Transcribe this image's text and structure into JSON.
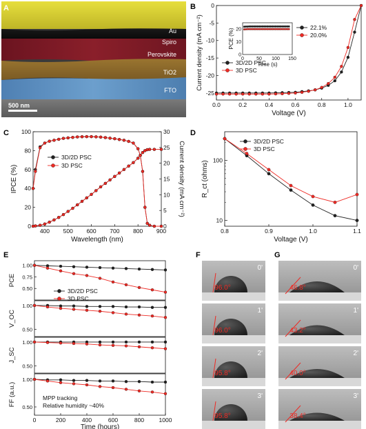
{
  "panel_labels": {
    "A": "A",
    "B": "B",
    "C": "C",
    "D": "D",
    "E": "E",
    "F": "F",
    "G": "G"
  },
  "colors": {
    "black_series": "#222222",
    "red_series": "#ee2a24",
    "au": "#d8cf2f",
    "spiro": "#111111",
    "perovskite": "#7e1a24",
    "tio2": "#8e6a2c",
    "fto": "#5d8fbf",
    "glass": "#6a6a6a"
  },
  "panel_a": {
    "layers": [
      "Au",
      "Spiro",
      "Perovskite",
      "TiO2",
      "FTO"
    ],
    "scale_bar": "500 nm"
  },
  "panel_f": {
    "times": [
      "0'",
      "1'",
      "2'",
      "3'"
    ],
    "angles": [
      "96.0°",
      "96.0°",
      "95.8°",
      "95.8°"
    ]
  },
  "panel_g": {
    "times": [
      "0'",
      "1'",
      "2'",
      "3'"
    ],
    "angles": [
      "46.8°",
      "43.2°",
      "40.0°",
      "38.4°"
    ]
  },
  "chart_data": [
    {
      "panel": "B",
      "type": "line",
      "xlabel": "Voltage (V)",
      "ylabel": "Current density (mA cm⁻²)",
      "xlim": [
        0.0,
        1.1
      ],
      "ylim": [
        -27,
        0
      ],
      "xticks": [
        0.0,
        0.2,
        0.4,
        0.6,
        0.8,
        1.0
      ],
      "yticks": [
        -25,
        -20,
        -15,
        -10,
        -5,
        0
      ],
      "x": [
        0.0,
        0.05,
        0.1,
        0.15,
        0.2,
        0.25,
        0.3,
        0.35,
        0.4,
        0.45,
        0.5,
        0.55,
        0.6,
        0.65,
        0.7,
        0.75,
        0.8,
        0.85,
        0.9,
        0.95,
        1.0,
        1.05,
        1.1
      ],
      "series": [
        {
          "name": "3D/2D PSC",
          "color": "#222222",
          "values": [
            -25.0,
            -25.0,
            -25.0,
            -25.0,
            -25.0,
            -25.0,
            -25.0,
            -25.0,
            -25.0,
            -24.95,
            -24.9,
            -24.85,
            -24.8,
            -24.6,
            -24.4,
            -24.1,
            -23.6,
            -22.8,
            -21.5,
            -19.0,
            -14.8,
            -7.6,
            0
          ]
        },
        {
          "name": "3D PSC",
          "color": "#ee2a24",
          "values": [
            -25.3,
            -25.3,
            -25.3,
            -25.3,
            -25.3,
            -25.3,
            -25.3,
            -25.3,
            -25.3,
            -25.25,
            -25.2,
            -25.1,
            -25.0,
            -24.8,
            -24.5,
            -24.1,
            -23.4,
            -22.3,
            -20.5,
            -17.4,
            -12.0,
            -4.0,
            0
          ]
        }
      ],
      "inset": {
        "type": "line",
        "xlabel": "Time (s)",
        "ylabel": "PCE (%)",
        "xlim": [
          0,
          150
        ],
        "ylim": [
          0,
          25
        ],
        "xticks": [
          0,
          50,
          100,
          150
        ],
        "yticks": [
          0,
          10,
          20
        ],
        "x": [
          5,
          10,
          15,
          20,
          25,
          30,
          35,
          40,
          45,
          50,
          55,
          60,
          65,
          70,
          75,
          80,
          85,
          90,
          95,
          100,
          105,
          110,
          115,
          120,
          125,
          130,
          135,
          140
        ],
        "series": [
          {
            "name": "22.1%",
            "color": "#222222",
            "values": [
              21.9,
              22.0,
              22.0,
              22.1,
              22.1,
              22.1,
              22.1,
              22.1,
              22.1,
              22.1,
              22.1,
              22.1,
              22.1,
              22.1,
              22.1,
              22.1,
              22.1,
              22.1,
              22.1,
              22.1,
              22.1,
              22.1,
              22.1,
              22.1,
              22.1,
              22.1,
              22.1,
              22.1
            ]
          },
          {
            "name": "20.0%",
            "color": "#ee2a24",
            "values": [
              19.8,
              19.9,
              20.0,
              20.0,
              20.0,
              20.0,
              20.0,
              20.0,
              20.0,
              20.0,
              20.0,
              20.0,
              20.0,
              20.0,
              20.0,
              20.0,
              20.0,
              20.0,
              20.0,
              20.0,
              20.0,
              20.0,
              20.0,
              20.0,
              20.0,
              20.0,
              20.0,
              20.0
            ]
          }
        ]
      },
      "legend": [
        "3D/2D PSC",
        "3D PSC"
      ]
    },
    {
      "panel": "C",
      "type": "line",
      "xlabel": "Wavelength (nm)",
      "ylabel": "IPCE (%)",
      "y2label": "Current density (mA cm⁻²)",
      "xlim": [
        350,
        900
      ],
      "ylim": [
        0,
        100
      ],
      "y2lim": [
        0,
        30
      ],
      "xticks": [
        400,
        500,
        600,
        700,
        800,
        900
      ],
      "yticks": [
        0,
        20,
        40,
        60,
        80,
        100
      ],
      "y2ticks": [
        0,
        5,
        10,
        15,
        20,
        25,
        30
      ],
      "x": [
        350,
        360,
        380,
        400,
        420,
        440,
        460,
        480,
        500,
        520,
        540,
        560,
        580,
        600,
        620,
        640,
        660,
        680,
        700,
        720,
        740,
        760,
        780,
        800,
        810,
        820,
        830,
        840,
        850,
        870,
        900
      ],
      "series": [
        {
          "name": "3D/2D PSC",
          "axis": "ipce",
          "color": "#222222",
          "values": [
            40,
            60,
            84,
            88,
            90,
            91,
            92,
            93,
            93.5,
            94,
            94.5,
            94.7,
            94.8,
            94.8,
            94.6,
            94.3,
            93.8,
            93.2,
            92.6,
            91.8,
            91.0,
            89.8,
            88.0,
            82,
            75,
            58,
            20,
            3,
            1,
            0,
            0
          ]
        },
        {
          "name": "3D PSC",
          "axis": "ipce",
          "color": "#ee2a24",
          "values": [
            40,
            58,
            83,
            88,
            90,
            91,
            92,
            93,
            93.5,
            94,
            94.5,
            94.7,
            94.8,
            94.8,
            94.6,
            94.3,
            93.8,
            93.2,
            92.6,
            91.8,
            91.0,
            89.8,
            88.0,
            82,
            75,
            58,
            20,
            3,
            1,
            0,
            0
          ]
        },
        {
          "name": "3D/2D PSC",
          "axis": "jsc",
          "color": "#222222",
          "values": [
            0,
            0.1,
            0.3,
            0.7,
            1.3,
            2.0,
            2.8,
            3.7,
            4.7,
            5.7,
            6.8,
            7.9,
            9.0,
            10.1,
            11.3,
            12.5,
            13.6,
            14.7,
            15.8,
            16.9,
            18.0,
            19.1,
            20.2,
            21.6,
            22.5,
            23.4,
            24.0,
            24.3,
            24.4,
            24.4,
            24.4
          ]
        },
        {
          "name": "3D PSC",
          "axis": "jsc",
          "color": "#ee2a24",
          "values": [
            0,
            0.1,
            0.3,
            0.7,
            1.3,
            2.0,
            2.8,
            3.7,
            4.7,
            5.7,
            6.8,
            7.9,
            9.0,
            10.1,
            11.3,
            12.5,
            13.6,
            14.7,
            15.8,
            16.9,
            18.0,
            19.1,
            20.2,
            21.6,
            22.5,
            23.4,
            24.0,
            24.3,
            24.4,
            24.4,
            24.4
          ]
        }
      ],
      "legend": [
        "3D/2D PSC",
        "3D PSC"
      ]
    },
    {
      "panel": "D",
      "type": "line",
      "scale_y": "log",
      "xlabel": "Voltage (V)",
      "ylabel": "R_ct (ohms)",
      "xlim": [
        0.8,
        1.1
      ],
      "ylim": [
        8,
        300
      ],
      "xticks": [
        0.8,
        0.9,
        1.0,
        1.1
      ],
      "yticks": [
        10,
        100
      ],
      "x": [
        0.8,
        0.85,
        0.9,
        0.95,
        1.0,
        1.05,
        1.1
      ],
      "series": [
        {
          "name": "3D/2D PSC",
          "color": "#222222",
          "values": [
            230,
            120,
            60,
            32,
            18,
            12,
            10
          ]
        },
        {
          "name": "3D PSC",
          "color": "#ee2a24",
          "values": [
            230,
            130,
            70,
            38,
            25,
            20,
            27
          ]
        }
      ],
      "legend": [
        "3D/2D PSC",
        "3D PSC"
      ]
    },
    {
      "panel": "E",
      "type": "scatter",
      "xlabel": "Time (hours)",
      "xlim": [
        0,
        1000
      ],
      "xticks": [
        0,
        200,
        400,
        600,
        800,
        1000
      ],
      "annotation": [
        "MPP tracking",
        "Relative humidity ~40%"
      ],
      "legend": [
        "3D/2D PSC",
        "3D PSC"
      ],
      "x": [
        0,
        100,
        200,
        300,
        400,
        500,
        600,
        700,
        800,
        900,
        1000
      ],
      "subplots": [
        {
          "ylabel": "PCE",
          "ylim": [
            0.0,
            1.05
          ],
          "yticks": [
            0.0,
            0.25,
            0.5,
            0.75,
            1.0
          ],
          "series": [
            {
              "name": "3D/2D PSC",
              "color": "#222222",
              "values": [
                1.0,
                0.99,
                0.98,
                0.97,
                0.96,
                0.95,
                0.94,
                0.93,
                0.92,
                0.91,
                0.9
              ]
            },
            {
              "name": "3D PSC",
              "color": "#ee2a24",
              "values": [
                1.0,
                0.94,
                0.88,
                0.82,
                0.78,
                0.72,
                0.64,
                0.58,
                0.52,
                0.47,
                0.42
              ]
            }
          ]
        },
        {
          "ylabel": "V_OC",
          "ylim": [
            0.0,
            1.05
          ],
          "yticks": [
            0.0,
            0.25,
            0.5,
            0.75,
            1.0
          ],
          "series": [
            {
              "name": "3D/2D PSC",
              "color": "#222222",
              "values": [
                1.0,
                1.0,
                0.99,
                0.99,
                0.98,
                0.98,
                0.98,
                0.97,
                0.97,
                0.96,
                0.96
              ]
            },
            {
              "name": "3D PSC",
              "color": "#ee2a24",
              "values": [
                1.0,
                0.97,
                0.94,
                0.92,
                0.9,
                0.88,
                0.85,
                0.82,
                0.8,
                0.78,
                0.75
              ]
            }
          ]
        },
        {
          "ylabel": "J_SC",
          "ylim": [
            0.0,
            1.05
          ],
          "yticks": [
            0.0,
            0.25,
            0.5,
            0.75,
            1.0
          ],
          "series": [
            {
              "name": "3D/2D PSC",
              "color": "#222222",
              "values": [
                1.0,
                1.0,
                1.0,
                1.0,
                1.0,
                1.0,
                1.0,
                1.0,
                1.0,
                1.0,
                1.0
              ]
            },
            {
              "name": "3D PSC",
              "color": "#ee2a24",
              "values": [
                1.0,
                0.99,
                0.98,
                0.97,
                0.96,
                0.94,
                0.93,
                0.92,
                0.9,
                0.88,
                0.86
              ]
            }
          ]
        },
        {
          "ylabel": "FF (a.u.)",
          "ylim": [
            0.0,
            1.05
          ],
          "yticks": [
            0.0,
            0.25,
            0.5,
            0.75,
            1.0
          ],
          "series": [
            {
              "name": "3D/2D PSC",
              "color": "#222222",
              "values": [
                1.0,
                0.99,
                0.99,
                0.98,
                0.98,
                0.97,
                0.97,
                0.96,
                0.96,
                0.95,
                0.95
              ]
            },
            {
              "name": "3D PSC",
              "color": "#ee2a24",
              "values": [
                1.0,
                0.97,
                0.94,
                0.92,
                0.9,
                0.87,
                0.85,
                0.82,
                0.79,
                0.77,
                0.74
              ]
            }
          ]
        }
      ]
    }
  ]
}
